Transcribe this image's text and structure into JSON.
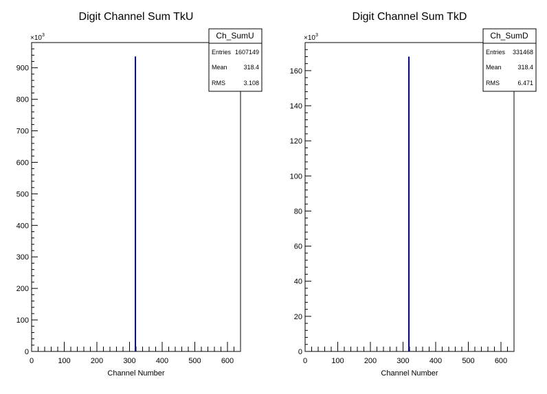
{
  "colors": {
    "histogram_line": "#000080",
    "axis": "#000000",
    "background": "#ffffff"
  },
  "chart_data": [
    {
      "type": "bar",
      "title": "Digit Channel Sum TkU",
      "xlabel": "Channel Number",
      "ylabel": "",
      "y_multiplier": "×10",
      "y_multiplier_exp": "3",
      "xlim": [
        0,
        640
      ],
      "ylim": [
        0,
        980
      ],
      "x_ticks": [
        0,
        100,
        200,
        300,
        400,
        500,
        600
      ],
      "y_ticks": [
        0,
        100,
        200,
        300,
        400,
        500,
        600,
        700,
        800,
        900
      ],
      "grid": false,
      "bins": [
        {
          "x": 318,
          "value": 936
        }
      ],
      "stats": {
        "name": "Ch_SumU",
        "rows": [
          {
            "label": "Entries",
            "value": "1607149"
          },
          {
            "label": "Mean",
            "value": "318.4"
          },
          {
            "label": "RMS",
            "value": "3.108"
          }
        ]
      }
    },
    {
      "type": "bar",
      "title": "Digit Channel Sum TkD",
      "xlabel": "Channel Number",
      "ylabel": "",
      "y_multiplier": "×10",
      "y_multiplier_exp": "3",
      "xlim": [
        0,
        640
      ],
      "ylim": [
        0,
        176
      ],
      "x_ticks": [
        0,
        100,
        200,
        300,
        400,
        500,
        600
      ],
      "y_ticks": [
        0,
        20,
        40,
        60,
        80,
        100,
        120,
        140,
        160
      ],
      "grid": false,
      "bins": [
        {
          "x": 318,
          "value": 168
        }
      ],
      "stats": {
        "name": "Ch_SumD",
        "rows": [
          {
            "label": "Entries",
            "value": "331468"
          },
          {
            "label": "Mean",
            "value": "318.4"
          },
          {
            "label": "RMS",
            "value": "6.471"
          }
        ]
      }
    }
  ]
}
